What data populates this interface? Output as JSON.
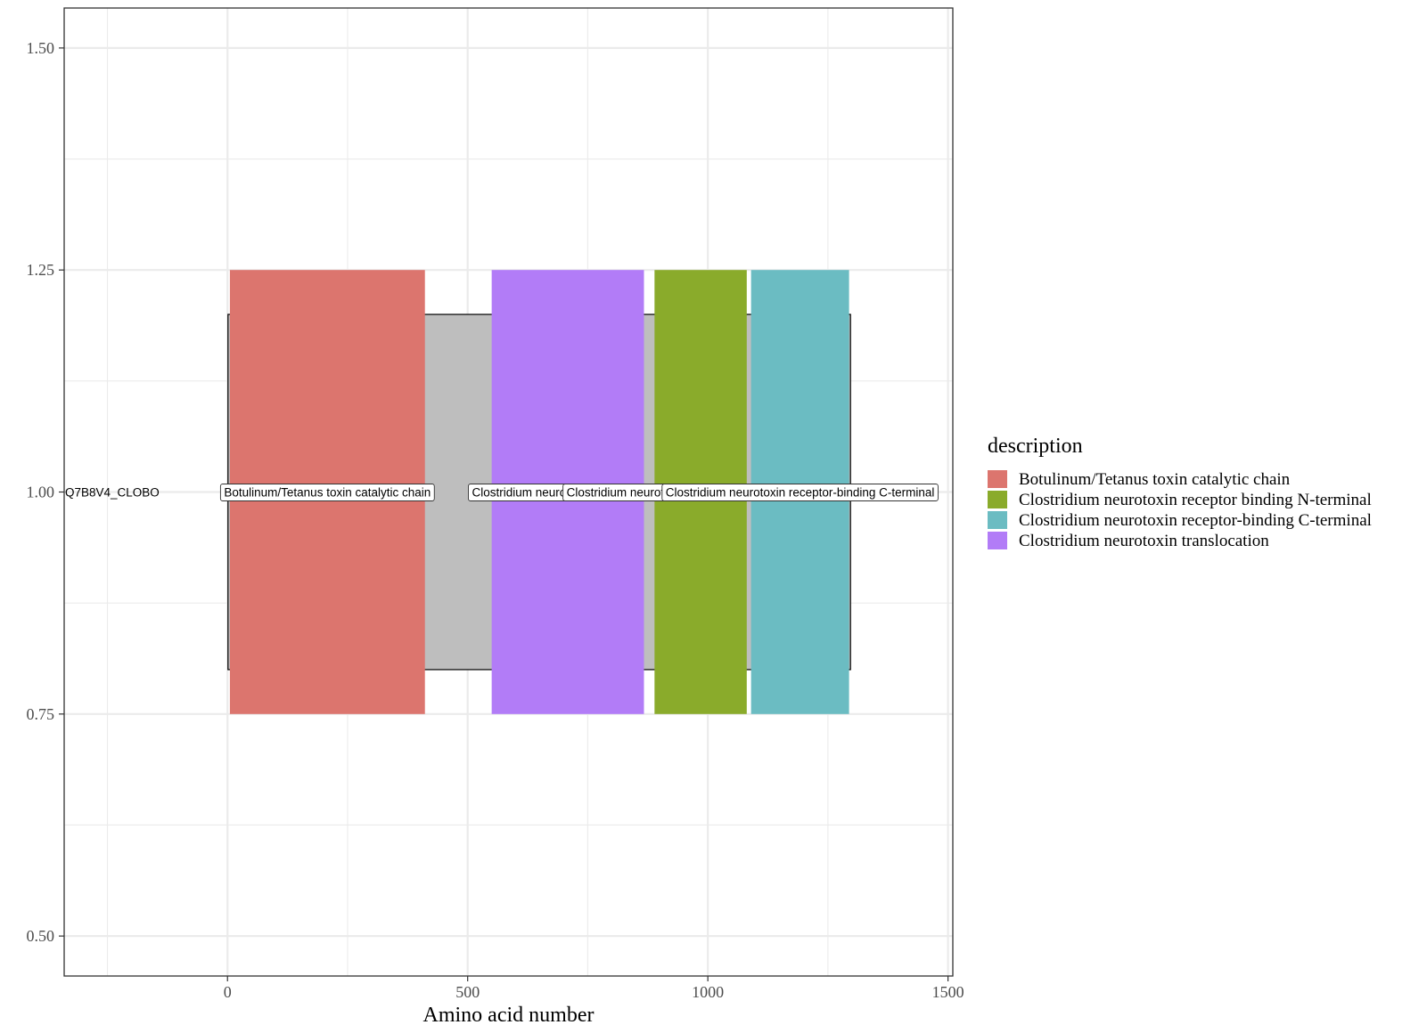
{
  "chart_data": {
    "type": "bar",
    "xlabel": "Amino acid number",
    "ylabel": "",
    "xlim": [
      -340,
      1510
    ],
    "ylim": [
      0.455,
      1.545
    ],
    "x_ticks": [
      0,
      500,
      1000,
      1500
    ],
    "x_tick_labels": [
      "0",
      "500",
      "1000",
      "1500"
    ],
    "y_ticks": [
      0.5,
      0.75,
      1.0,
      1.25,
      1.5
    ],
    "y_tick_labels": [
      "0.50",
      "0.75",
      "1.00",
      "1.25",
      "1.50"
    ],
    "grid": true,
    "protein": {
      "name": "Q7B8V4_CLOBO",
      "start": 1,
      "end": 1297,
      "ymin": 0.8,
      "ymax": 1.2,
      "fill": "#bebebe"
    },
    "domains": [
      {
        "description": "Botulinum/Tetanus toxin catalytic chain",
        "begin": 5,
        "end": 411,
        "ymin": 0.75,
        "ymax": 1.25,
        "color": "#dc756e"
      },
      {
        "description": "Clostridium neurotoxin translocation",
        "begin": 550,
        "end": 867,
        "ymin": 0.75,
        "ymax": 1.25,
        "color": "#b27cf7"
      },
      {
        "description": "Clostridium neurotoxin receptor binding N-terminal",
        "begin": 889,
        "end": 1081,
        "ymin": 0.75,
        "ymax": 1.25,
        "color": "#8aab2b"
      },
      {
        "description": "Clostridium neurotoxin receptor-binding C-terminal",
        "begin": 1090,
        "end": 1294,
        "ymin": 0.75,
        "ymax": 1.25,
        "color": "#6bbcc2"
      }
    ],
    "labels": [
      {
        "text": "Q7B8V4_CLOBO",
        "x": -240,
        "y": 1.0,
        "boxed": false
      },
      {
        "text": "Botulinum/Tetanus toxin catalytic chain",
        "x": 208,
        "y": 1.0,
        "boxed": true
      },
      {
        "text": "Clostridium neurotoxin translocation",
        "x": 708,
        "y": 1.0,
        "boxed": true
      },
      {
        "text": "Clostridium neurotoxin receptor binding N-terminal",
        "x": 985,
        "y": 1.0,
        "boxed": true
      },
      {
        "text": "Clostridium neurotoxin receptor-binding C-terminal",
        "x": 1192,
        "y": 1.0,
        "boxed": true
      }
    ],
    "legend": {
      "title": "description",
      "position": "right",
      "items": [
        {
          "label": "Botulinum/Tetanus toxin catalytic chain",
          "color": "#dc756e"
        },
        {
          "label": "Clostridium neurotoxin receptor binding N-terminal",
          "color": "#8aab2b"
        },
        {
          "label": "Clostridium neurotoxin receptor-binding C-terminal",
          "color": "#6bbcc2"
        },
        {
          "label": "Clostridium neurotoxin translocation",
          "color": "#b27cf7"
        }
      ]
    }
  }
}
